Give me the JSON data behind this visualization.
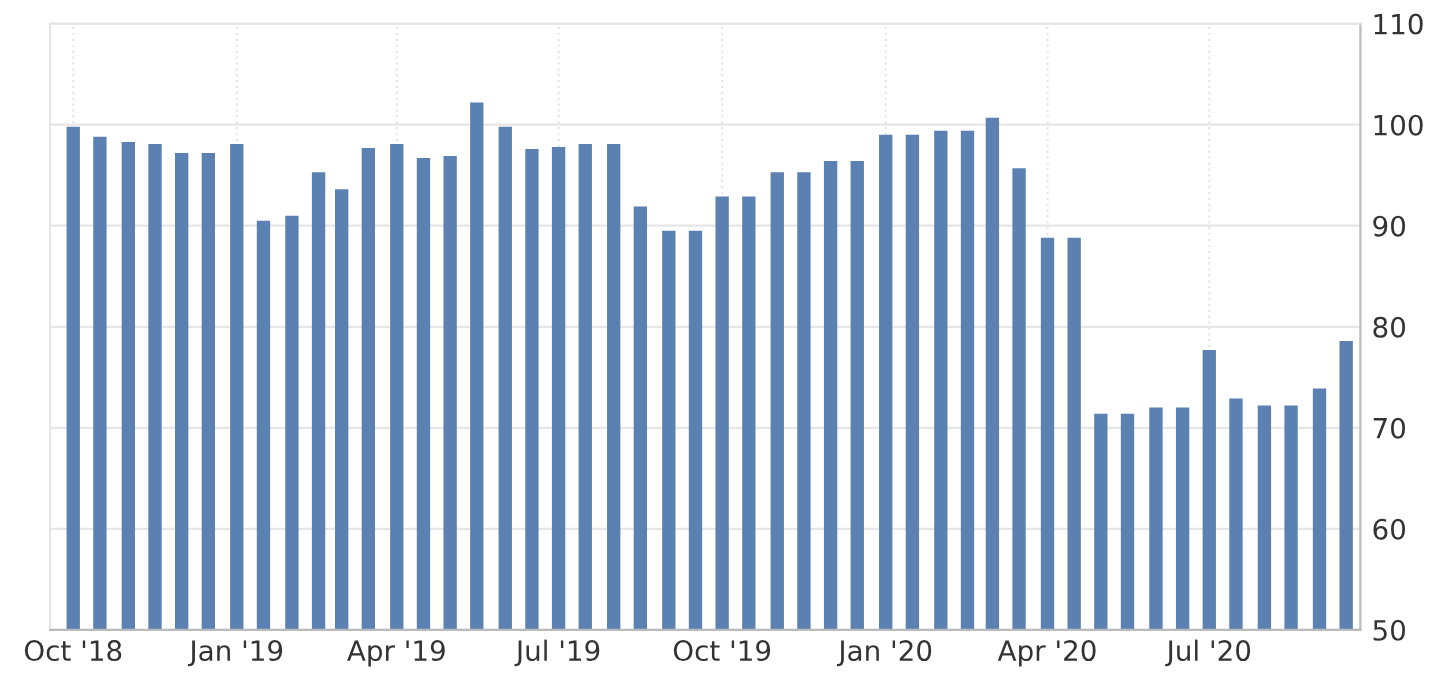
{
  "chart_data": {
    "type": "bar",
    "x": [
      "2018-10-01",
      "2018-10-16",
      "2018-11-01",
      "2018-11-16",
      "2018-12-01",
      "2018-12-16",
      "2019-01-01",
      "2019-01-16",
      "2019-02-01",
      "2019-02-16",
      "2019-03-01",
      "2019-03-16",
      "2019-04-01",
      "2019-04-16",
      "2019-05-01",
      "2019-05-16",
      "2019-06-01",
      "2019-06-16",
      "2019-07-01",
      "2019-07-16",
      "2019-08-01",
      "2019-08-16",
      "2019-09-01",
      "2019-09-16",
      "2019-10-01",
      "2019-10-16",
      "2019-11-01",
      "2019-11-16",
      "2019-12-01",
      "2019-12-16",
      "2020-01-01",
      "2020-01-16",
      "2020-02-01",
      "2020-02-16",
      "2020-03-01",
      "2020-03-16",
      "2020-04-01",
      "2020-04-16",
      "2020-05-01",
      "2020-05-16",
      "2020-06-01",
      "2020-06-16",
      "2020-07-01",
      "2020-07-16",
      "2020-08-01",
      "2020-08-16",
      "2020-09-01",
      "2020-09-16"
    ],
    "values": [
      99.8,
      98.8,
      98.3,
      98.1,
      97.2,
      97.2,
      98.1,
      90.5,
      91.0,
      95.3,
      93.6,
      97.7,
      98.1,
      96.7,
      96.9,
      102.2,
      99.8,
      97.6,
      97.8,
      98.1,
      98.1,
      91.9,
      89.5,
      89.5,
      92.9,
      92.9,
      95.3,
      95.3,
      96.4,
      96.4,
      99.0,
      99.0,
      99.4,
      99.4,
      100.7,
      95.7,
      88.8,
      88.8,
      71.4,
      71.4,
      72.0,
      72.0,
      77.7,
      72.9,
      72.2,
      72.2,
      73.9,
      78.6
    ],
    "color": "#5b80b2",
    "xlim": [
      "2018-09-18",
      "2020-09-24"
    ],
    "xticks": [
      {
        "value": "2018-10-01",
        "label": "Oct '18"
      },
      {
        "value": "2019-01-01",
        "label": "Jan '19"
      },
      {
        "value": "2019-04-01",
        "label": "Apr '19"
      },
      {
        "value": "2019-07-01",
        "label": "Jul '19"
      },
      {
        "value": "2019-10-01",
        "label": "Oct '19"
      },
      {
        "value": "2020-01-01",
        "label": "Jan '20"
      },
      {
        "value": "2020-04-01",
        "label": "Apr '20"
      },
      {
        "value": "2020-07-01",
        "label": "Jul '20"
      }
    ],
    "ylim": [
      50,
      110
    ],
    "yticks": [
      50,
      60,
      70,
      80,
      90,
      100,
      110
    ],
    "grid": true,
    "legend": false
  }
}
